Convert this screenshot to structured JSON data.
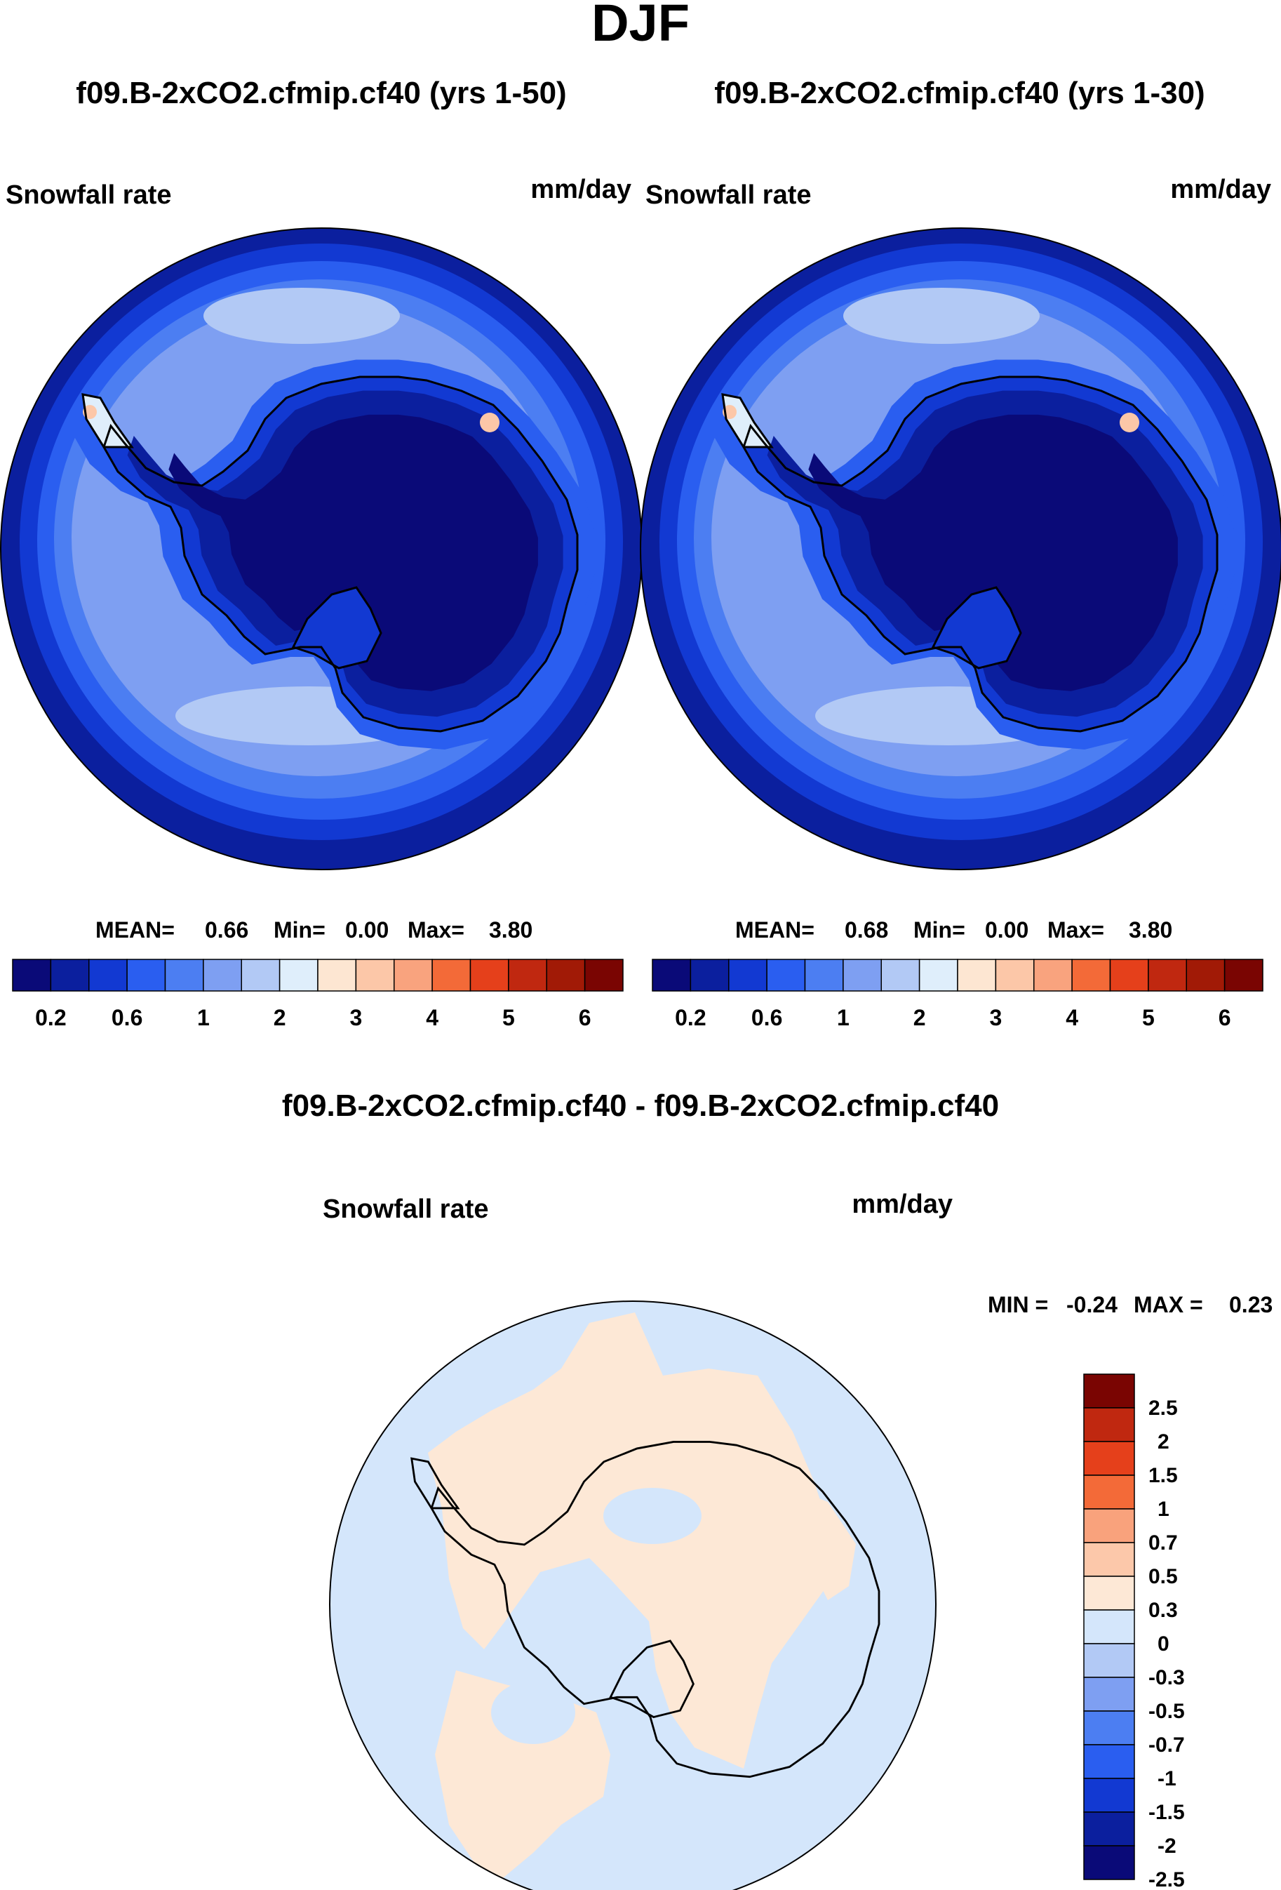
{
  "figure": {
    "season": "DJF",
    "colors": {
      "abs_scale": [
        "#0a0a78",
        "#0b1f9e",
        "#1239d2",
        "#2a5ef0",
        "#4c7ef2",
        "#7e9ff2",
        "#b2c9f5",
        "#dfeefb",
        "#fde6d2",
        "#fcc7a8",
        "#f9a37e",
        "#f36a38",
        "#e5401b",
        "#c02810",
        "#a11a06",
        "#7a0502"
      ],
      "diff_scale": [
        "#0a0a78",
        "#0b1f9e",
        "#1239d2",
        "#2a5ef0",
        "#4c7ef2",
        "#7e9ff2",
        "#b2c9f5",
        "#d4e6fb",
        "#fde8d6",
        "#fcc8aa",
        "#f9a27c",
        "#f36a38",
        "#e5401b",
        "#c02810",
        "#7a0502"
      ],
      "coast": "#000000"
    }
  },
  "panels": [
    {
      "title": "f09.B-2xCO2.cfmip.cf40 (yrs 1-50)",
      "variable": "Snowfall rate",
      "units": "mm/day",
      "stats": {
        "mean_label": "MEAN=",
        "mean": "0.66",
        "min_label": "Min=",
        "min": "0.00",
        "max_label": "Max=",
        "max": "3.80"
      },
      "colorbar_ticks": [
        "0.2",
        "0.6",
        "1",
        "2",
        "3",
        "4",
        "5",
        "6"
      ]
    },
    {
      "title": "f09.B-2xCO2.cfmip.cf40 (yrs 1-30)",
      "variable": "Snowfall rate",
      "units": "mm/day",
      "stats": {
        "mean_label": "MEAN=",
        "mean": "0.68",
        "min_label": "Min=",
        "min": "0.00",
        "max_label": "Max=",
        "max": "3.80"
      },
      "colorbar_ticks": [
        "0.2",
        "0.6",
        "1",
        "2",
        "3",
        "4",
        "5",
        "6"
      ]
    }
  ],
  "difference": {
    "title": "f09.B-2xCO2.cfmip.cf40 - f09.B-2xCO2.cfmip.cf40",
    "variable": "Snowfall rate",
    "units": "mm/day",
    "stats": {
      "min_label": "MIN =",
      "min": "-0.24",
      "max_label": "MAX =",
      "max": "0.23"
    },
    "colorbar_ticks": [
      "2.5",
      "2",
      "1.5",
      "1",
      "0.7",
      "0.5",
      "0.3",
      "0",
      "-0.3",
      "-0.5",
      "-0.7",
      "-1",
      "-1.5",
      "-2",
      "-2.5"
    ]
  }
}
